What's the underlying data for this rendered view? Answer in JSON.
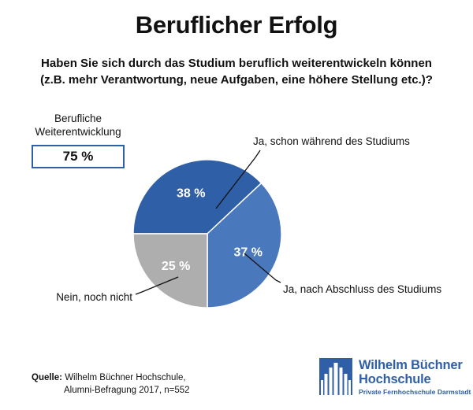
{
  "title": "Beruflicher Erfolg",
  "question_line1": "Haben Sie sich durch das Studium beruflich weiterentwickeln können",
  "question_line2": "(z.B. mehr Verantwortung, neue Aufgaben, eine höhere Stellung etc.)?",
  "kpi": {
    "label_line1": "Berufliche",
    "label_line2": "Weiterentwicklung",
    "value": "75 %"
  },
  "source": {
    "label": "Quelle:",
    "line1": "Wilhelm Büchner Hochschule,",
    "line2": "Alumni-Befragung 2017, n=552"
  },
  "logo": {
    "line1": "Wilhelm Büchner",
    "line2": "Hochschule",
    "line3": "Private Fernhochschule Darmstadt"
  },
  "colors": {
    "accent": "#2f5fa6",
    "slice_during": "#2f5fa6",
    "slice_after": "#4a78bd",
    "slice_not_yet": "#aeaeae"
  },
  "chart_data": {
    "type": "pie",
    "title": "",
    "slices": [
      {
        "name": "Ja, schon während des Studiums",
        "value": 38,
        "label": "38 %",
        "color": "#2f5fa6"
      },
      {
        "name": "Ja, nach Abschluss des Studiums",
        "value": 37,
        "label": "37 %",
        "color": "#4a78bd"
      },
      {
        "name": "Nein, noch nicht",
        "value": 25,
        "label": "25 %",
        "color": "#aeaeae"
      }
    ]
  }
}
